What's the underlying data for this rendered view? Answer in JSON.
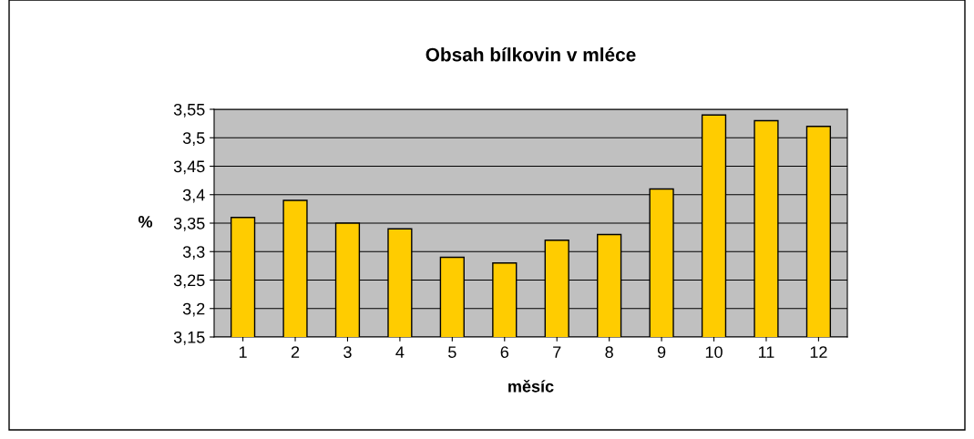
{
  "chart_data": {
    "type": "bar",
    "title": "Obsah bílkovin v mléce",
    "xlabel": "měsíc",
    "ylabel": "%",
    "categories": [
      "1",
      "2",
      "3",
      "4",
      "5",
      "6",
      "7",
      "8",
      "9",
      "10",
      "11",
      "12"
    ],
    "values": [
      3.36,
      3.39,
      3.35,
      3.34,
      3.29,
      3.28,
      3.32,
      3.33,
      3.41,
      3.54,
      3.53,
      3.52
    ],
    "color": "#ffcc00",
    "ylim": [
      3.15,
      3.55
    ],
    "yticks": [
      {
        "value": 3.15,
        "label": "3,15"
      },
      {
        "value": 3.2,
        "label": "3,2"
      },
      {
        "value": 3.25,
        "label": "3,25"
      },
      {
        "value": 3.3,
        "label": "3,3"
      },
      {
        "value": 3.35,
        "label": "3,35"
      },
      {
        "value": 3.4,
        "label": "3,4"
      },
      {
        "value": 3.45,
        "label": "3,45"
      },
      {
        "value": 3.5,
        "label": "3,5"
      },
      {
        "value": 3.55,
        "label": "3,55"
      }
    ],
    "grid": "y"
  }
}
